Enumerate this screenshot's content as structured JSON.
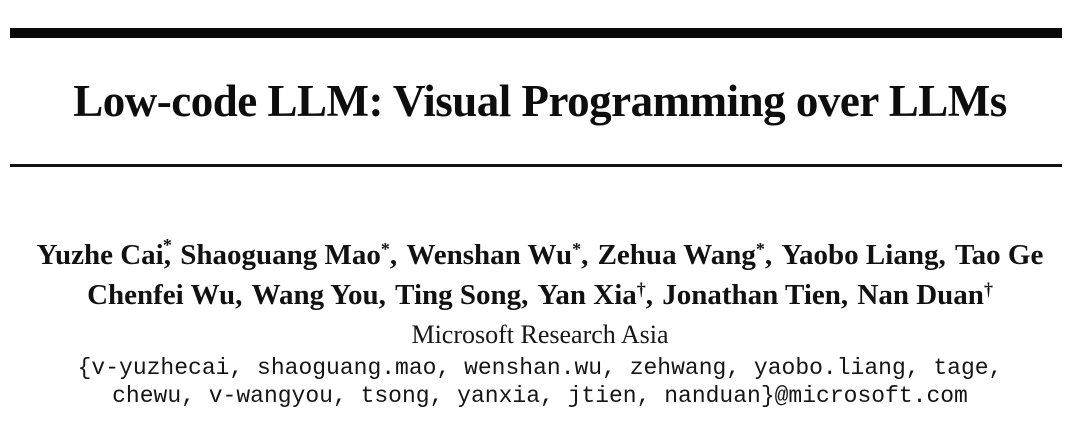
{
  "title": "Low-code LLM: Visual Programming over LLMs",
  "authors": {
    "line1": [
      {
        "name": "Yuzhe Cai",
        "mark": "*",
        "comma": ","
      },
      {
        "name": "Shaoguang Mao",
        "mark": "*",
        "comma": ","
      },
      {
        "name": "Wenshan Wu",
        "mark": "*",
        "comma": ","
      },
      {
        "name": "Zehua Wang",
        "mark": "*",
        "comma": ","
      },
      {
        "name": "Yaobo Liang",
        "mark": "",
        "comma": ","
      },
      {
        "name": "Tao Ge",
        "mark": "",
        "comma": ""
      }
    ],
    "line2": [
      {
        "name": "Chenfei Wu",
        "mark": "",
        "comma": ","
      },
      {
        "name": "Wang You",
        "mark": "",
        "comma": ","
      },
      {
        "name": "Ting Song",
        "mark": "",
        "comma": ","
      },
      {
        "name": "Yan Xia",
        "mark": "†",
        "comma": ","
      },
      {
        "name": "Jonathan Tien",
        "mark": "",
        "comma": ","
      },
      {
        "name": "Nan Duan",
        "mark": "†",
        "comma": ""
      }
    ]
  },
  "affiliation": "Microsoft Research Asia",
  "emails": {
    "line1": "{v-yuzhecai, shaoguang.mao, wenshan.wu, zehwang, yaobo.liang, tage,",
    "line2": "chewu, v-wangyou, tsong, yanxia, jtien, nanduan}@microsoft.com"
  }
}
